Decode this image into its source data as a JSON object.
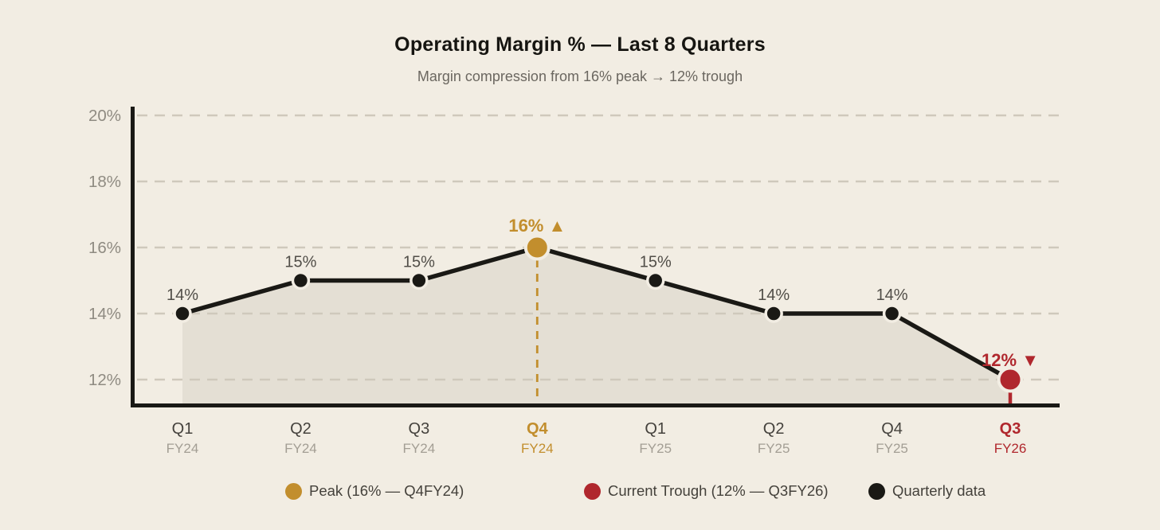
{
  "chart_data": {
    "type": "line",
    "title": "Operating Margin % — Last 8 Quarters",
    "subtitle": "Margin compression from 16% peak → 12% trough",
    "x_categories": [
      {
        "quarter": "Q1",
        "fiscal_year": "FY24",
        "role": "normal"
      },
      {
        "quarter": "Q2",
        "fiscal_year": "FY24",
        "role": "normal"
      },
      {
        "quarter": "Q3",
        "fiscal_year": "FY24",
        "role": "normal"
      },
      {
        "quarter": "Q4",
        "fiscal_year": "FY24",
        "role": "peak"
      },
      {
        "quarter": "Q1",
        "fiscal_year": "FY25",
        "role": "normal"
      },
      {
        "quarter": "Q2",
        "fiscal_year": "FY25",
        "role": "normal"
      },
      {
        "quarter": "Q4",
        "fiscal_year": "FY25",
        "role": "normal"
      },
      {
        "quarter": "Q3",
        "fiscal_year": "FY26",
        "role": "trough"
      }
    ],
    "values": [
      14,
      15,
      15,
      16,
      15,
      14,
      14,
      12
    ],
    "point_labels": [
      "14%",
      "15%",
      "15%",
      "16%",
      "15%",
      "14%",
      "14%",
      "12%"
    ],
    "peak_annotation": {
      "label": "16%",
      "arrow": "▲"
    },
    "trough_annotation": {
      "label": "12%",
      "arrow": "▼"
    },
    "y_ticks": [
      {
        "value": 20,
        "label": "20%"
      },
      {
        "value": 18,
        "label": "18%"
      },
      {
        "value": 16,
        "label": "16%"
      },
      {
        "value": 14,
        "label": "14%"
      },
      {
        "value": 12,
        "label": "12%"
      }
    ],
    "ylim": [
      11,
      20.3
    ],
    "grid": true,
    "legend_position": "bottom",
    "legend": [
      {
        "name": "peak",
        "label": "Peak (16% — Q4FY24)",
        "color": "#C28E2D"
      },
      {
        "name": "trough",
        "label": "Current Trough (12% — Q3FY26)",
        "color": "#B0272D"
      },
      {
        "name": "quarterly",
        "label": "Quarterly data",
        "color": "#1A1915"
      }
    ],
    "colors": {
      "background": "#F2EDE3",
      "line": "#1A1915",
      "area_fill": "#E4DFD4",
      "grid": "#CFC9BC",
      "axis": "#1A1915",
      "peak": "#C28E2D",
      "trough": "#B0272D",
      "title": "#161511",
      "subtitle": "#6B6760",
      "point_label": "#514E48",
      "tick_label": "#8F8B82",
      "x_quarter": "#45423D",
      "x_fiscal": "#A39E94",
      "legend_text": "#44413B"
    }
  }
}
